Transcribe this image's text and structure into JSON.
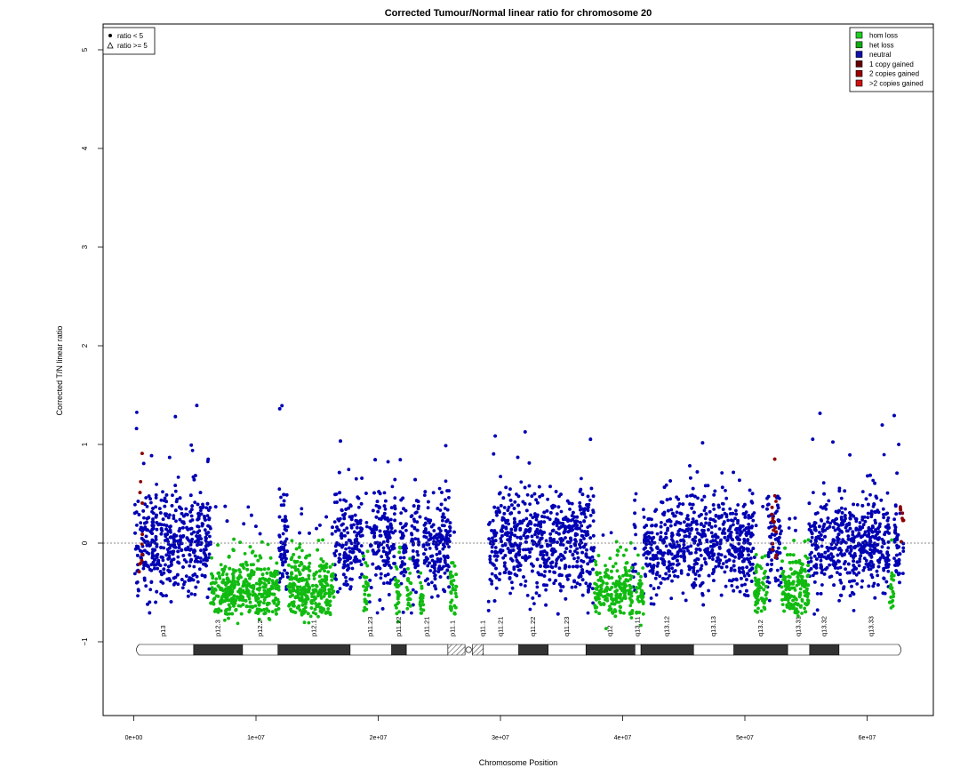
{
  "chart_data": {
    "type": "scatter",
    "title": "Corrected Tumour/Normal linear ratio for chromosome  20",
    "xlabel": "Chromosome Position",
    "ylabel": "Corrected T/N linear ratio",
    "xlim": [
      0,
      64000000
    ],
    "ylim": [
      -1.75,
      5.3
    ],
    "x_ticks": [
      0,
      10000000,
      20000000,
      30000000,
      40000000,
      50000000,
      60000000
    ],
    "x_tick_labels": [
      "0e+00",
      "1e+07",
      "2e+07",
      "3e+07",
      "4e+07",
      "5e+07",
      "6e+07"
    ],
    "y_ticks": [
      -1,
      0,
      1,
      2,
      3,
      4,
      5
    ],
    "y_tick_labels": [
      "−1",
      "0",
      "1",
      "2",
      "3",
      "4",
      "5"
    ],
    "reference_line_y": 0,
    "shape_legend": {
      "position": "top-left",
      "items": [
        {
          "symbol": "circle",
          "label": "ratio < 5"
        },
        {
          "symbol": "triangle",
          "label": "ratio >= 5"
        }
      ]
    },
    "color_legend": {
      "position": "top-right",
      "items": [
        {
          "label": "hom loss",
          "color": "#22cc22"
        },
        {
          "label": "het loss",
          "color": "#11aa11"
        },
        {
          "label": "neutral",
          "color": "#1010aa"
        },
        {
          "label": "1 copy gained",
          "color": "#660000"
        },
        {
          "label": "2 copies gained",
          "color": "#990000"
        },
        {
          "label": ">2 copies gained",
          "color": "#cc1111"
        }
      ]
    },
    "series_colors": {
      "neutral": "#0000b4",
      "het_loss": "#11bb11",
      "gain": "#8b0000"
    },
    "data_gap": [
      26400000,
      29000000
    ],
    "het_loss_regions": [
      [
        6300000,
        11900000
      ],
      [
        12600000,
        16400000
      ],
      [
        18800000,
        19300000
      ],
      [
        21400000,
        21800000
      ],
      [
        22300000,
        22700000
      ],
      [
        23400000,
        23700000
      ],
      [
        25900000,
        26400000
      ],
      [
        37700000,
        40800000
      ],
      [
        41100000,
        41700000
      ],
      [
        50800000,
        51800000
      ],
      [
        53000000,
        55200000
      ],
      [
        61800000,
        62200000
      ]
    ],
    "gain_regions": [
      [
        400000,
        700000
      ],
      [
        52200000,
        52600000
      ],
      [
        62700000,
        63000000
      ]
    ],
    "cytobands": [
      {
        "name": "p13",
        "start": 0,
        "end": 4900000,
        "stain": "white"
      },
      {
        "name": "p12.3",
        "start": 4900000,
        "end": 8900000,
        "stain": "dark"
      },
      {
        "name": "p12.2",
        "start": 8900000,
        "end": 11800000,
        "stain": "white"
      },
      {
        "name": "p12.1",
        "start": 11800000,
        "end": 17700000,
        "stain": "dark"
      },
      {
        "name": "p11.23",
        "start": 17700000,
        "end": 21100000,
        "stain": "white"
      },
      {
        "name": "p11.22",
        "start": 21100000,
        "end": 22300000,
        "stain": "dark"
      },
      {
        "name": "p11.21",
        "start": 22300000,
        "end": 25700000,
        "stain": "white"
      },
      {
        "name": "p11.1",
        "start": 25700000,
        "end": 27100000,
        "stain": "acen"
      },
      {
        "name": "q11.1",
        "start": 27700000,
        "end": 28600000,
        "stain": "acen"
      },
      {
        "name": "q11.21",
        "start": 28600000,
        "end": 31500000,
        "stain": "white"
      },
      {
        "name": "q11.22",
        "start": 31500000,
        "end": 33900000,
        "stain": "dark"
      },
      {
        "name": "q11.23",
        "start": 33900000,
        "end": 37000000,
        "stain": "white"
      },
      {
        "name": "q12",
        "start": 37000000,
        "end": 41000000,
        "stain": "dark"
      },
      {
        "name": "q13.11",
        "start": 41000000,
        "end": 41500000,
        "stain": "white"
      },
      {
        "name": "q13.12",
        "start": 41500000,
        "end": 45800000,
        "stain": "dark"
      },
      {
        "name": "q13.13",
        "start": 45800000,
        "end": 49100000,
        "stain": "white"
      },
      {
        "name": "q13.2",
        "start": 49100000,
        "end": 53500000,
        "stain": "dark"
      },
      {
        "name": "q13.31",
        "start": 53500000,
        "end": 55300000,
        "stain": "white"
      },
      {
        "name": "q13.32",
        "start": 55300000,
        "end": 57700000,
        "stain": "dark"
      },
      {
        "name": "q13.33",
        "start": 57700000,
        "end": 63000000,
        "stain": "white"
      }
    ],
    "grid": false
  }
}
